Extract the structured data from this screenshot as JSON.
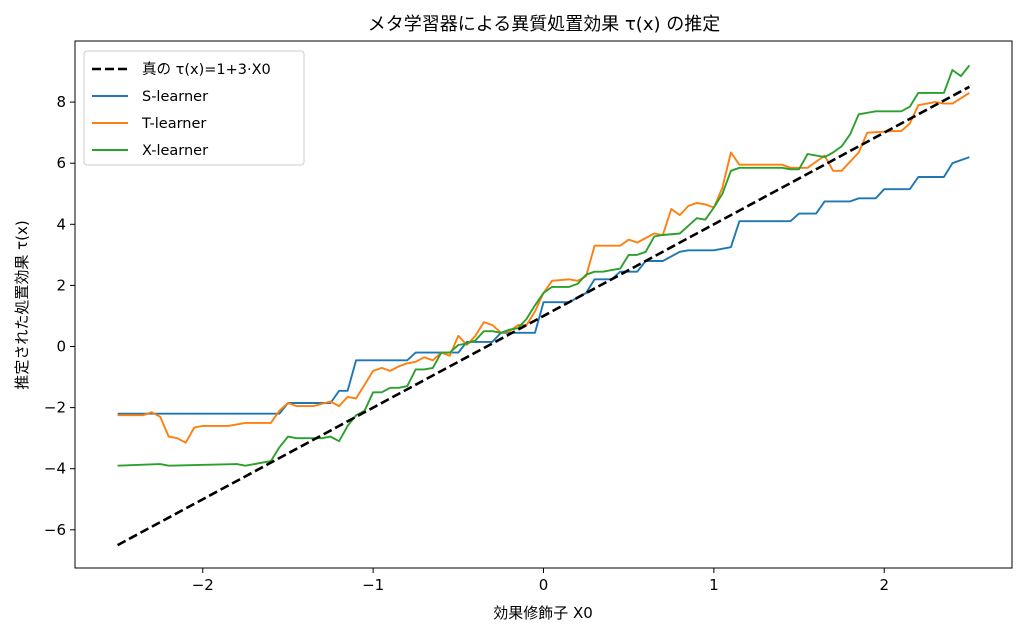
{
  "chart_data": {
    "type": "line",
    "title": "メタ学習器による異質処置効果 τ(x) の推定",
    "xlabel": "効果修飾子 X0",
    "ylabel": "推定された処置効果 τ(x)",
    "xlim": [
      -2.75,
      2.75
    ],
    "ylim": [
      -7.25,
      10.0
    ],
    "xticks": [
      -2,
      -1,
      0,
      1,
      2
    ],
    "yticks": [
      -6,
      -4,
      -2,
      0,
      2,
      4,
      6,
      8
    ],
    "xtick_labels": [
      "−2",
      "−1",
      "0",
      "1",
      "2"
    ],
    "ytick_labels": [
      "−6",
      "−4",
      "−2",
      "0",
      "2",
      "4",
      "6",
      "8"
    ],
    "grid": false,
    "legend_position": "top-left",
    "series": [
      {
        "name": "真の τ(x)=1+3·X0",
        "color": "#000000",
        "dashed": true,
        "x": [
          -2.5,
          2.5
        ],
        "y": [
          -6.5,
          8.5
        ]
      },
      {
        "name": "S-learner",
        "color": "#1f77b4",
        "dashed": false,
        "x": [
          -2.5,
          -1.55,
          -1.5,
          -1.25,
          -1.2,
          -1.15,
          -1.1,
          -1.05,
          -1.0,
          -0.8,
          -0.75,
          -0.5,
          -0.45,
          -0.3,
          -0.25,
          -0.05,
          0.0,
          0.15,
          0.2,
          0.25,
          0.3,
          0.4,
          0.45,
          0.55,
          0.6,
          0.7,
          0.8,
          0.85,
          1.0,
          1.1,
          1.15,
          1.45,
          1.5,
          1.6,
          1.65,
          1.8,
          1.85,
          1.95,
          2.0,
          2.15,
          2.2,
          2.35,
          2.4,
          2.5
        ],
        "y": [
          -2.2,
          -2.2,
          -1.85,
          -1.85,
          -1.45,
          -1.45,
          -0.45,
          -0.45,
          -0.45,
          -0.45,
          -0.2,
          -0.2,
          0.15,
          0.15,
          0.45,
          0.45,
          1.45,
          1.45,
          1.6,
          1.75,
          2.2,
          2.2,
          2.45,
          2.45,
          2.8,
          2.8,
          3.1,
          3.15,
          3.15,
          3.25,
          4.1,
          4.1,
          4.35,
          4.35,
          4.75,
          4.75,
          4.85,
          4.85,
          5.15,
          5.15,
          5.55,
          5.55,
          6.0,
          6.2
        ]
      },
      {
        "name": "T-learner",
        "color": "#ff7f0e",
        "dashed": false,
        "x": [
          -2.5,
          -2.35,
          -2.3,
          -2.25,
          -2.2,
          -2.15,
          -2.1,
          -2.05,
          -2.0,
          -1.85,
          -1.75,
          -1.6,
          -1.55,
          -1.5,
          -1.45,
          -1.35,
          -1.25,
          -1.2,
          -1.15,
          -1.1,
          -1.05,
          -1.0,
          -0.95,
          -0.9,
          -0.85,
          -0.8,
          -0.75,
          -0.7,
          -0.65,
          -0.6,
          -0.55,
          -0.5,
          -0.45,
          -0.4,
          -0.35,
          -0.3,
          -0.25,
          -0.2,
          -0.15,
          -0.1,
          -0.05,
          0.0,
          0.05,
          0.15,
          0.2,
          0.25,
          0.3,
          0.35,
          0.45,
          0.5,
          0.55,
          0.65,
          0.7,
          0.75,
          0.8,
          0.85,
          0.9,
          0.95,
          1.0,
          1.05,
          1.1,
          1.15,
          1.2,
          1.4,
          1.45,
          1.5,
          1.55,
          1.65,
          1.7,
          1.75,
          1.85,
          1.9,
          2.05,
          2.1,
          2.15,
          2.2,
          2.3,
          2.35,
          2.4,
          2.5
        ],
        "y": [
          -2.25,
          -2.25,
          -2.15,
          -2.3,
          -2.95,
          -3.0,
          -3.15,
          -2.65,
          -2.6,
          -2.6,
          -2.5,
          -2.5,
          -2.1,
          -1.85,
          -1.95,
          -1.95,
          -1.8,
          -1.95,
          -1.65,
          -1.7,
          -1.25,
          -0.8,
          -0.7,
          -0.8,
          -0.65,
          -0.55,
          -0.5,
          -0.35,
          -0.45,
          -0.2,
          -0.3,
          0.35,
          0.05,
          0.35,
          0.8,
          0.7,
          0.45,
          0.5,
          0.7,
          0.7,
          1.15,
          1.75,
          2.15,
          2.2,
          2.15,
          2.3,
          3.3,
          3.3,
          3.3,
          3.5,
          3.4,
          3.7,
          3.65,
          4.5,
          4.3,
          4.6,
          4.7,
          4.65,
          4.55,
          5.2,
          6.35,
          5.95,
          5.95,
          5.95,
          5.85,
          5.85,
          5.85,
          6.25,
          5.75,
          5.75,
          6.35,
          7.0,
          7.05,
          7.05,
          7.3,
          7.9,
          8.0,
          7.95,
          7.95,
          8.3
        ]
      },
      {
        "name": "X-learner",
        "color": "#2ca02c",
        "dashed": false,
        "x": [
          -2.5,
          -2.25,
          -2.2,
          -1.8,
          -1.75,
          -1.6,
          -1.55,
          -1.5,
          -1.45,
          -1.3,
          -1.25,
          -1.2,
          -1.15,
          -1.1,
          -1.05,
          -1.0,
          -0.95,
          -0.9,
          -0.85,
          -0.8,
          -0.75,
          -0.7,
          -0.65,
          -0.6,
          -0.55,
          -0.5,
          -0.45,
          -0.4,
          -0.35,
          -0.3,
          -0.25,
          -0.2,
          -0.15,
          -0.1,
          -0.05,
          0.0,
          0.05,
          0.15,
          0.2,
          0.25,
          0.3,
          0.35,
          0.4,
          0.45,
          0.5,
          0.55,
          0.6,
          0.65,
          0.7,
          0.8,
          0.85,
          0.9,
          0.95,
          1.0,
          1.05,
          1.1,
          1.15,
          1.2,
          1.4,
          1.45,
          1.5,
          1.55,
          1.65,
          1.7,
          1.75,
          1.8,
          1.85,
          1.9,
          1.95,
          2.05,
          2.1,
          2.15,
          2.2,
          2.3,
          2.35,
          2.4,
          2.45,
          2.5
        ],
        "y": [
          -3.9,
          -3.85,
          -3.9,
          -3.85,
          -3.9,
          -3.75,
          -3.3,
          -2.95,
          -3.0,
          -3.0,
          -2.95,
          -3.1,
          -2.6,
          -2.25,
          -2.1,
          -1.5,
          -1.5,
          -1.35,
          -1.35,
          -1.3,
          -0.75,
          -0.75,
          -0.7,
          -0.2,
          -0.2,
          0.05,
          0.1,
          0.2,
          0.5,
          0.5,
          0.45,
          0.55,
          0.6,
          0.9,
          1.35,
          1.75,
          1.95,
          1.95,
          2.05,
          2.35,
          2.45,
          2.45,
          2.5,
          2.55,
          3.0,
          3.0,
          3.1,
          3.6,
          3.65,
          3.7,
          3.95,
          4.2,
          4.15,
          4.55,
          5.0,
          5.75,
          5.85,
          5.85,
          5.85,
          5.8,
          5.8,
          6.3,
          6.2,
          6.35,
          6.55,
          6.95,
          7.6,
          7.65,
          7.7,
          7.7,
          7.7,
          7.85,
          8.3,
          8.3,
          8.3,
          9.05,
          8.85,
          9.2
        ]
      }
    ]
  }
}
